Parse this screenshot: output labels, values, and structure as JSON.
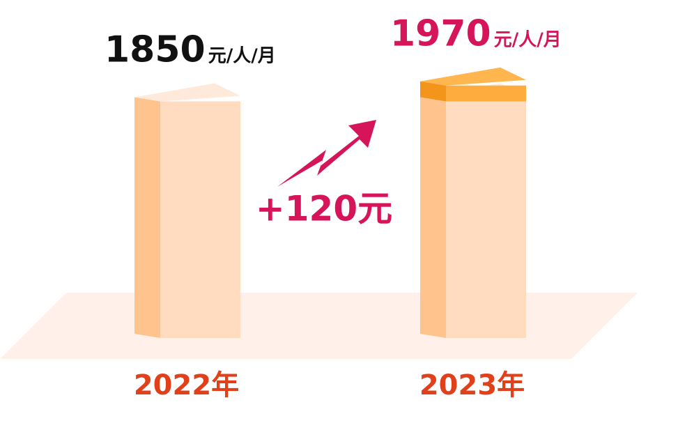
{
  "chart_data": {
    "type": "bar3d",
    "categories": [
      "2022年",
      "2023年"
    ],
    "values": [
      1850,
      1970
    ],
    "value_unit": "元/人/月",
    "value_label_colors": [
      "#111111",
      "#d6145a"
    ],
    "annotation": "+120元",
    "annotation_color": "#d6145a",
    "category_color": "#e0401a",
    "bar_colors": {
      "front": "#ffdcbf",
      "side": "#ffc38e",
      "top": "#ffe9da"
    },
    "increase_colors": {
      "front": "#ffac3e",
      "side": "#f4951b",
      "top": "#ffb64e"
    }
  }
}
